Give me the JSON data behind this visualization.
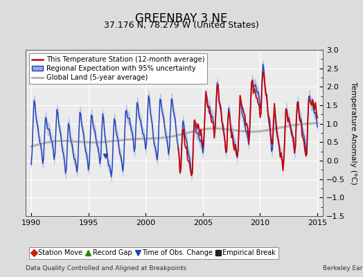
{
  "title": "GREENBAY 3 NE",
  "subtitle": "37.176 N, 78.279 W (United States)",
  "ylabel": "Temperature Anomaly (°C)",
  "xlabel_left": "Data Quality Controlled and Aligned at Breakpoints",
  "xlabel_right": "Berkeley Earth",
  "xlim": [
    1989.5,
    2015.5
  ],
  "ylim": [
    -1.5,
    3.0
  ],
  "yticks": [
    -1.5,
    -1.0,
    -0.5,
    0.0,
    0.5,
    1.0,
    1.5,
    2.0,
    2.5,
    3.0
  ],
  "xticks": [
    1990,
    1995,
    2000,
    2005,
    2010,
    2015
  ],
  "bg_color": "#dcdcdc",
  "plot_bg_color": "#ebebeb",
  "grid_color": "#ffffff",
  "blue_line_color": "#2244bb",
  "blue_fill_color": "#99aadd",
  "red_line_color": "#cc0000",
  "gray_line_color": "#b0b0b0",
  "title_fontsize": 12,
  "subtitle_fontsize": 9,
  "tick_fontsize": 8,
  "ylabel_fontsize": 8
}
